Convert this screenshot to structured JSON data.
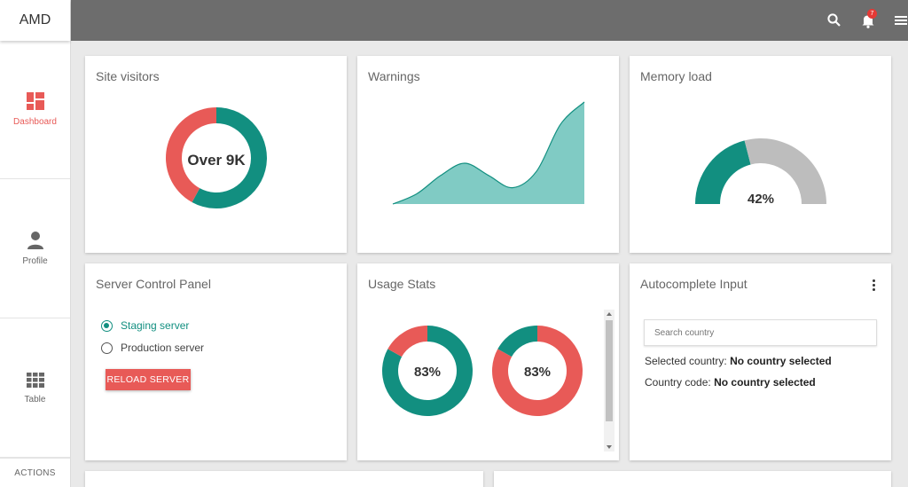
{
  "app": {
    "brand": "AMD"
  },
  "sidebar": {
    "items": [
      {
        "label": "Dashboard",
        "icon": "dashboard-icon"
      },
      {
        "label": "Profile",
        "icon": "person-icon"
      },
      {
        "label": "Table",
        "icon": "grid-icon"
      }
    ],
    "actions_label": "ACTIONS"
  },
  "topbar": {
    "notification_count": "7",
    "icons": [
      "search-icon",
      "bell-icon",
      "menu-icon"
    ]
  },
  "colors": {
    "teal": "#128f80",
    "teal_light": "#80cbc4",
    "red": "#e85a57",
    "grey": "#bdbdbd",
    "topbar": "#6d6d6d"
  },
  "cards": {
    "site_visitors": {
      "title": "Site visitors",
      "center_text": "Over 9K"
    },
    "warnings": {
      "title": "Warnings"
    },
    "memory_load": {
      "title": "Memory load",
      "value_text": "42%"
    },
    "server_panel": {
      "title": "Server Control Panel",
      "options": [
        "Staging server",
        "Production server"
      ],
      "selected": "Staging server",
      "button_label": "RELOAD SERVER"
    },
    "usage_stats": {
      "title": "Usage Stats",
      "gauge1_text": "83%",
      "gauge2_text": "83%"
    },
    "autocomplete": {
      "title": "Autocomplete Input",
      "placeholder": "Search country",
      "selected_country_label": "Selected country:",
      "selected_country_value": "No country selected",
      "country_code_label": "Country code:",
      "country_code_value": "No country selected"
    }
  },
  "chart_data": [
    {
      "type": "pie",
      "values": [
        58,
        42
      ],
      "colors": [
        "#128f80",
        "#e85a57"
      ]
    },
    {
      "type": "area",
      "x": [
        0,
        1,
        2,
        3,
        4,
        5,
        6,
        7,
        8
      ],
      "values": [
        0,
        10,
        28,
        40,
        28,
        16,
        32,
        78,
        100
      ]
    },
    {
      "type": "pie",
      "values": [
        42,
        58
      ],
      "colors": [
        "#128f80",
        "#bdbdbd"
      ]
    },
    {
      "type": "pie",
      "values": [
        83,
        17
      ],
      "colors": [
        "#128f80",
        "#e85a57"
      ]
    },
    {
      "type": "pie",
      "values": [
        83,
        17
      ],
      "colors": [
        "#e85a57",
        "#128f80"
      ]
    }
  ]
}
